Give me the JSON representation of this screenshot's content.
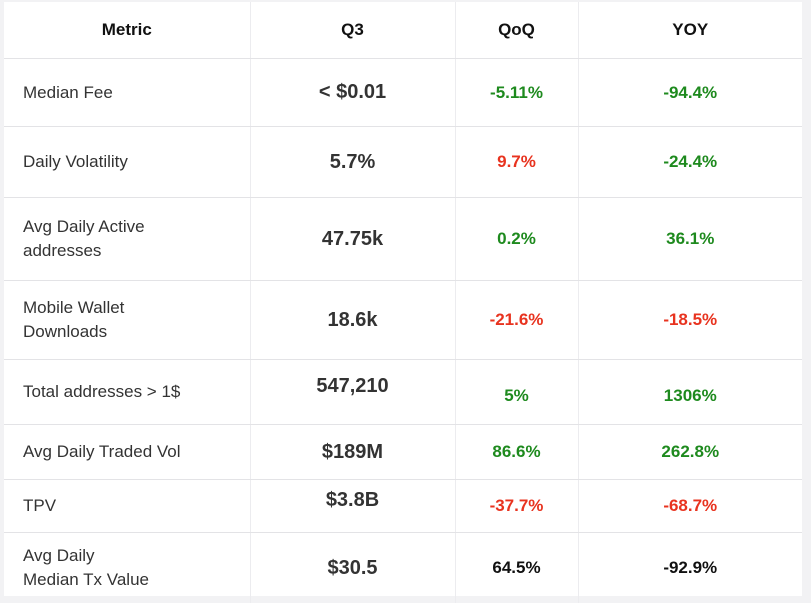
{
  "headers": [
    "Metric",
    "Q3",
    "QoQ",
    "YOY"
  ],
  "rows": [
    {
      "metric": [
        "Median Fee"
      ],
      "q3": "< $0.01",
      "qoq": "-5.11%",
      "qoq_status": "pos",
      "yoy": "-94.4%",
      "yoy_status": "pos"
    },
    {
      "metric": [
        "Daily Volatility"
      ],
      "q3": "5.7%",
      "qoq": "9.7%",
      "qoq_status": "neg",
      "yoy": "-24.4%",
      "yoy_status": "pos"
    },
    {
      "metric": [
        "Avg Daily Active",
        "addresses"
      ],
      "q3": "47.75k",
      "qoq": "0.2%",
      "qoq_status": "pos",
      "yoy": "36.1%",
      "yoy_status": "pos"
    },
    {
      "metric": [
        "Mobile Wallet",
        "Downloads"
      ],
      "q3": "18.6k",
      "qoq": "-21.6%",
      "qoq_status": "neg",
      "yoy": "-18.5%",
      "yoy_status": "neg"
    },
    {
      "metric": [
        "Total addresses > 1$"
      ],
      "q3": "547,210",
      "qoq": "5%",
      "qoq_status": "pos",
      "yoy": "1306%",
      "yoy_status": "pos"
    },
    {
      "metric": [
        "Avg Daily Traded Vol"
      ],
      "q3": "$189M",
      "qoq": "86.6%",
      "qoq_status": "pos",
      "yoy": "262.8%",
      "yoy_status": "pos"
    },
    {
      "metric": [
        "TPV"
      ],
      "q3": "$3.8B",
      "qoq": "-37.7%",
      "qoq_status": "neg",
      "yoy": "-68.7%",
      "yoy_status": "neg"
    },
    {
      "metric": [
        "Avg Daily",
        "Median Tx Value"
      ],
      "q3": "$30.5",
      "qoq": "64.5%",
      "qoq_status": "neu",
      "yoy": "-92.9%",
      "yoy_status": "neu"
    }
  ],
  "colors": {
    "positive": "#1e8a1e",
    "negative": "#e8331f",
    "neutral": "#111111"
  }
}
